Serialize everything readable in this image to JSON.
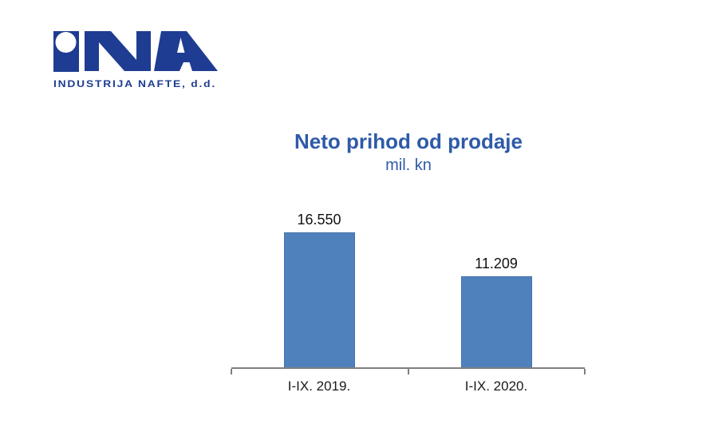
{
  "logo": {
    "monogram": "INA",
    "wordmark": "INDUSTRIJA NAFTE, d.d.",
    "color": "#1e3c91"
  },
  "chart_data": {
    "type": "bar",
    "title": "Neto prihod od prodaje",
    "subtitle": "mil. kn",
    "categories": [
      "I-IX. 2019.",
      "I-IX. 2020."
    ],
    "values": [
      16550,
      11209
    ],
    "value_labels": [
      "16.550",
      "11.209"
    ],
    "ylabel": "mil. kn",
    "ylim": [
      0,
      18000
    ],
    "grid": false,
    "legend": false,
    "bar_color": "#4f81bd",
    "bar_border_color": "#4272a8",
    "axis_color": "#7f7f7f",
    "title_color": "#2e5aa8",
    "value_label_color": "#111111",
    "category_label_color": "#1a1a1a"
  }
}
